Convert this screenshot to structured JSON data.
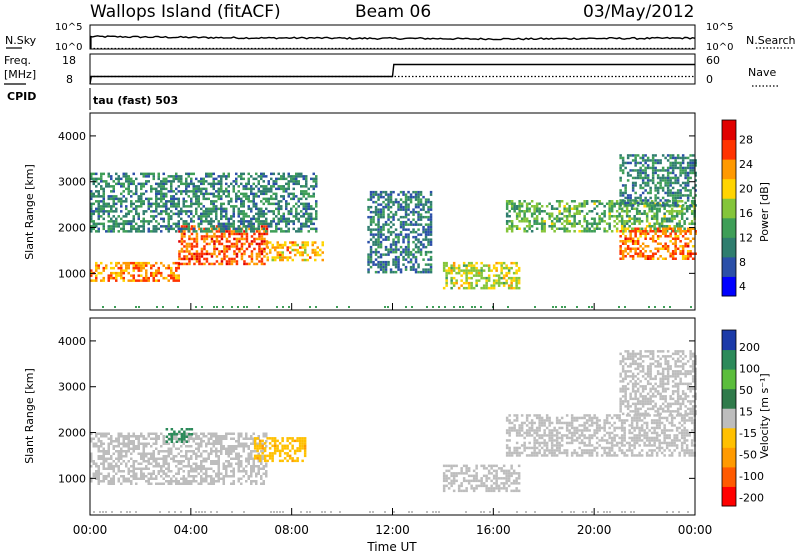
{
  "header": {
    "station": "Wallops Island (fitACF)",
    "beam": "Beam 06",
    "date": "03/May/2012"
  },
  "chart_data": [
    {
      "type": "line",
      "panel": "noise",
      "left_labels": [
        "N.Sky"
      ],
      "right_labels": [
        "N.Search"
      ],
      "left_ticks": [
        "10^5",
        "10^0"
      ],
      "right_ticks": [
        "10^5",
        "10^0"
      ],
      "description_series": [
        {
          "style": "solid",
          "values_log10": [
            2.6,
            2.5,
            2.4,
            2.3,
            2.3,
            2.2,
            2.2,
            2.1,
            2.1,
            2.2,
            2.2,
            2.3
          ]
        },
        {
          "style": "dotted",
          "values_log10": [
            0.1,
            0.1,
            0.1,
            0.1,
            0.1,
            0.1,
            0.1,
            0.1,
            0.1,
            0.1,
            0.1,
            0.1
          ]
        }
      ]
    },
    {
      "type": "line",
      "panel": "frequency",
      "left_labels": [
        "Freq.",
        "[MHz]"
      ],
      "right_labels": [
        "Nave"
      ],
      "left_ticks": [
        "18",
        "8"
      ],
      "right_ticks": [
        "60",
        "0"
      ],
      "series": [
        {
          "style": "solid",
          "x_hours": [
            0,
            0.05,
            12,
            12.05,
            24
          ],
          "values_mhz": [
            8,
            10.5,
            10.5,
            14.5,
            14.5
          ]
        },
        {
          "style": "dotted",
          "x_hours": [
            0,
            24
          ],
          "values_nave": [
            15,
            15
          ]
        }
      ]
    },
    {
      "type": "text",
      "panel": "cpid",
      "label": "CPID",
      "value": "tau (fast) 503"
    },
    {
      "type": "heatmap",
      "panel": "power",
      "ylabel": "Slant Range [km]",
      "yticks": [
        "4000",
        "3000",
        "2000",
        "1000"
      ],
      "ylim": [
        200,
        4500
      ],
      "xlim": [
        0,
        24
      ],
      "colorbar": {
        "label": "Power [dB]",
        "ticks": [
          "28",
          "24",
          "20",
          "16",
          "12",
          "8",
          "4"
        ],
        "range": [
          0,
          30
        ],
        "colors": [
          "#0000ff",
          "#2b4fa8",
          "#2f7d6e",
          "#3e9e57",
          "#84c53a",
          "#ffd400",
          "#ff9900",
          "#ff3300",
          "#e00000"
        ]
      },
      "regions": [
        {
          "t0": 0.0,
          "t1": 3.5,
          "r0": 850,
          "r1": 1250,
          "value": 22
        },
        {
          "t0": 3.5,
          "t1": 7.0,
          "r0": 1200,
          "r1": 2050,
          "value": 24
        },
        {
          "t0": 7.0,
          "t1": 9.2,
          "r0": 1300,
          "r1": 1700,
          "value": 20
        },
        {
          "t0": 0.0,
          "t1": 9.0,
          "r0": 1900,
          "r1": 3200,
          "value": 9
        },
        {
          "t0": 11.0,
          "t1": 13.5,
          "r0": 1000,
          "r1": 2800,
          "value": 8
        },
        {
          "t0": 14.0,
          "t1": 17.0,
          "r0": 650,
          "r1": 1250,
          "value": 17
        },
        {
          "t0": 16.5,
          "t1": 24.0,
          "r0": 1900,
          "r1": 2600,
          "value": 13
        },
        {
          "t0": 21.0,
          "t1": 24.0,
          "r0": 1300,
          "r1": 2000,
          "value": 23
        },
        {
          "t0": 21.0,
          "t1": 24.0,
          "r0": 2500,
          "r1": 3600,
          "value": 9
        }
      ]
    },
    {
      "type": "heatmap",
      "panel": "velocity",
      "ylabel": "Slant Range [km]",
      "yticks": [
        "4000",
        "3000",
        "2000",
        "1000"
      ],
      "ylim": [
        200,
        4500
      ],
      "xlabel": "Time UT",
      "xticks": [
        "00:00",
        "04:00",
        "08:00",
        "12:00",
        "16:00",
        "20:00",
        "00:00"
      ],
      "xlim": [
        0,
        24
      ],
      "colorbar": {
        "label": "Velocity [m s⁻¹]",
        "ticks": [
          "200",
          "100",
          "50",
          "15",
          "-15",
          "-50",
          "-100",
          "-200"
        ],
        "range": [
          -250,
          250
        ],
        "colors": [
          "#ff0000",
          "#ff5a00",
          "#ff9a00",
          "#ffc000",
          "#bdbdbd",
          "#2f7a4a",
          "#5bbd3c",
          "#2c8a5a",
          "#1b3aa8"
        ]
      },
      "regions": [
        {
          "t0": 0.0,
          "t1": 7.0,
          "r0": 900,
          "r1": 2000,
          "value": 0
        },
        {
          "t0": 3.0,
          "t1": 4.0,
          "r0": 1800,
          "r1": 2100,
          "value": 150
        },
        {
          "t0": 6.5,
          "t1": 8.5,
          "r0": 1400,
          "r1": 1900,
          "value": -80
        },
        {
          "t0": 14.0,
          "t1": 17.0,
          "r0": 700,
          "r1": 1300,
          "value": 0
        },
        {
          "t0": 16.5,
          "t1": 24.0,
          "r0": 1500,
          "r1": 2400,
          "value": 0
        },
        {
          "t0": 21.0,
          "t1": 24.0,
          "r0": 2400,
          "r1": 3800,
          "value": 5
        }
      ]
    }
  ]
}
